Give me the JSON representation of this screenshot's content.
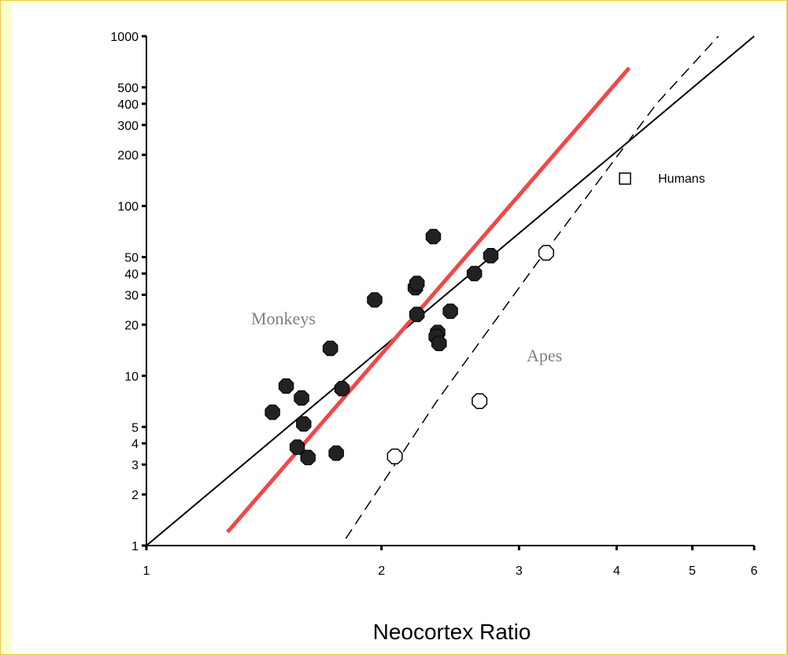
{
  "chart_data": {
    "type": "scatter",
    "xlabel": "Neocortex Ratio",
    "ylabel": "",
    "xscale": "log",
    "yscale": "log",
    "xlim": [
      1,
      6
    ],
    "ylim": [
      1,
      1000
    ],
    "x_ticks": [
      1,
      2,
      3,
      4,
      5,
      6
    ],
    "x_tick_labels": [
      "1",
      "2",
      "3",
      "4",
      "5",
      "6"
    ],
    "y_ticks": [
      1,
      2,
      3,
      4,
      5,
      10,
      20,
      30,
      40,
      50,
      100,
      200,
      300,
      400,
      500,
      1000
    ],
    "y_tick_labels": [
      "1",
      "2",
      "3",
      "4",
      "5",
      "10",
      "20",
      "30",
      "40",
      "50",
      "100",
      "200",
      "300",
      "400",
      "500",
      "1000"
    ],
    "grid": false,
    "annotations": {
      "monkeys": "Monkeys",
      "apes": "Apes",
      "humans": "Humans"
    },
    "colors": {
      "page_background": "#ffffcc",
      "monkey_points": "#222222",
      "red_line": "#f04848",
      "fit_lines": "#000000"
    },
    "series": [
      {
        "marker": "filled-octagon",
        "points": [
          [
            1.45,
            6.1
          ],
          [
            1.51,
            8.7
          ],
          [
            1.58,
            7.4
          ],
          [
            1.59,
            5.2
          ],
          [
            1.56,
            3.8
          ],
          [
            1.61,
            3.3
          ],
          [
            1.72,
            14.5
          ],
          [
            1.75,
            3.5
          ],
          [
            1.78,
            8.4
          ],
          [
            1.96,
            28.0
          ],
          [
            2.21,
            33.0
          ],
          [
            2.22,
            35.0
          ],
          [
            2.22,
            23.0
          ],
          [
            2.33,
            66.0
          ],
          [
            2.36,
            18.0
          ],
          [
            2.35,
            17.0
          ],
          [
            2.37,
            15.5
          ],
          [
            2.45,
            24.0
          ],
          [
            2.63,
            40.0
          ],
          [
            2.76,
            51.0
          ]
        ]
      },
      {
        "marker": "open-octagon",
        "points": [
          [
            2.08,
            3.35
          ],
          [
            2.67,
            7.1
          ],
          [
            3.25,
            53.0
          ]
        ]
      },
      {
        "marker": "open-square",
        "points": [
          [
            4.1,
            145.0
          ]
        ]
      }
    ],
    "lines": [
      {
        "style": "solid-black",
        "points": [
          [
            1.0,
            1.0
          ],
          [
            6.0,
            1000.0
          ]
        ]
      },
      {
        "style": "solid-red",
        "points": [
          [
            1.27,
            1.2
          ],
          [
            4.15,
            650.0
          ]
        ]
      },
      {
        "style": "dashed-black",
        "points": [
          [
            1.8,
            1.1
          ],
          [
            2.35,
            7.0
          ],
          [
            3.15,
            45.0
          ],
          [
            4.5,
            400.0
          ],
          [
            5.4,
            1000.0
          ]
        ]
      }
    ]
  }
}
